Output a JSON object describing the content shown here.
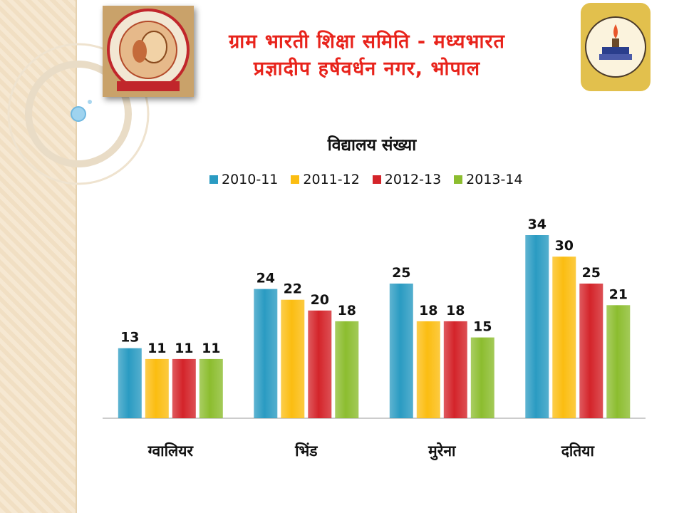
{
  "header": {
    "line1": "ग्राम भारती शिक्षा समिति - मध्यभारत",
    "line2": "प्रज्ञादीप हर्षवर्धन नगर, भोपाल"
  },
  "colors": {
    "accent": "#e8231b",
    "series": [
      "#2a9bc2",
      "#fbbd11",
      "#d4242a",
      "#8cbd2f"
    ]
  },
  "chart_data": {
    "type": "bar",
    "title": "विद्यालय संख्या",
    "xlabel": "",
    "ylabel": "",
    "ylim": [
      0,
      34
    ],
    "grid": false,
    "legend": "top",
    "categories": [
      "ग्वालियर",
      "भिंड",
      "मुरेना",
      "दतिया"
    ],
    "series": [
      {
        "name": "2010-11",
        "color": "#2a9bc2",
        "values": [
          13,
          24,
          25,
          34
        ]
      },
      {
        "name": "2011-12",
        "color": "#fbbd11",
        "values": [
          11,
          22,
          18,
          30
        ]
      },
      {
        "name": "2012-13",
        "color": "#d4242a",
        "values": [
          11,
          20,
          18,
          25
        ]
      },
      {
        "name": "2013-14",
        "color": "#8cbd2f",
        "values": [
          11,
          18,
          15,
          21
        ]
      }
    ]
  }
}
